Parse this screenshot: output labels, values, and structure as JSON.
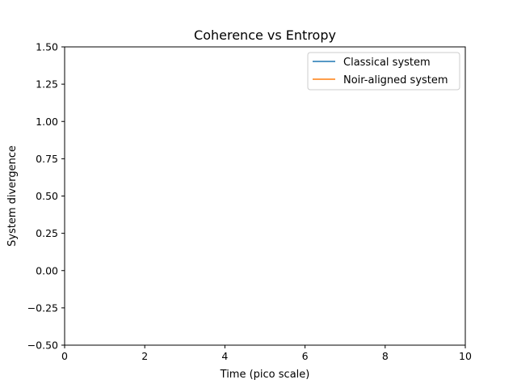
{
  "chart_data": {
    "type": "line",
    "title": "Coherence vs Entropy",
    "xlabel": "Time (pico scale)",
    "ylabel": "System divergence",
    "xlim": [
      0,
      10
    ],
    "ylim": [
      -0.5,
      1.5
    ],
    "xticks": [
      0,
      2,
      4,
      6,
      8,
      10
    ],
    "yticks": [
      -0.5,
      -0.25,
      0.0,
      0.25,
      0.5,
      0.75,
      1.0,
      1.25,
      1.5
    ],
    "xtick_labels": [
      "0",
      "2",
      "4",
      "6",
      "8",
      "10"
    ],
    "ytick_labels": [
      "−0.50",
      "−0.25",
      "0.00",
      "0.25",
      "0.50",
      "0.75",
      "1.00",
      "1.25",
      "1.50"
    ],
    "grid": false,
    "legend_position": "top-right",
    "series": [
      {
        "name": "Classical system",
        "color": "#1f77b4",
        "x": [],
        "y": []
      },
      {
        "name": "Noir-aligned system",
        "color": "#ff7f0e",
        "x": [],
        "y": []
      }
    ]
  }
}
